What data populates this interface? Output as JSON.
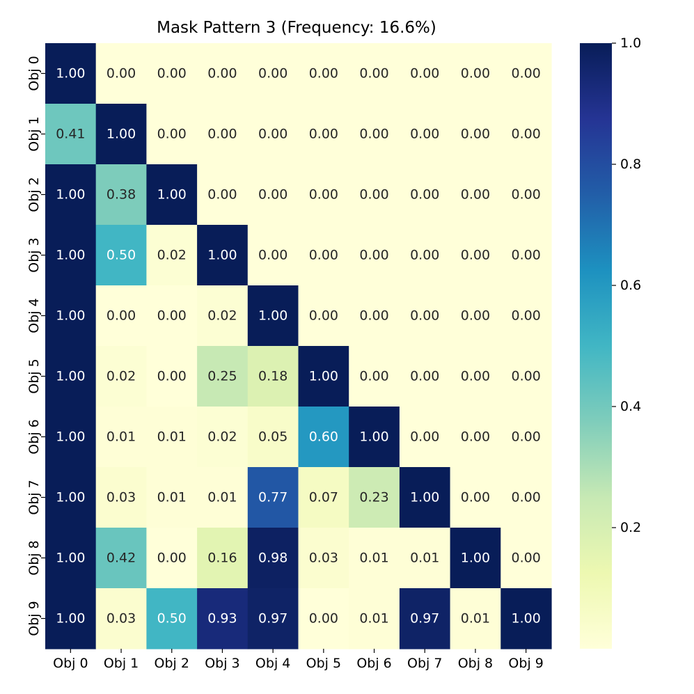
{
  "chart_data": {
    "type": "heatmap",
    "title": "Mask Pattern 3 (Frequency: 16.6%)",
    "x_categories": [
      "Obj 0",
      "Obj 1",
      "Obj 2",
      "Obj 3",
      "Obj 4",
      "Obj 5",
      "Obj 6",
      "Obj 7",
      "Obj 8",
      "Obj 9"
    ],
    "y_categories": [
      "Obj 0",
      "Obj 1",
      "Obj 2",
      "Obj 3",
      "Obj 4",
      "Obj 5",
      "Obj 6",
      "Obj 7",
      "Obj 8",
      "Obj 9"
    ],
    "values": [
      [
        1.0,
        0.0,
        0.0,
        0.0,
        0.0,
        0.0,
        0.0,
        0.0,
        0.0,
        0.0
      ],
      [
        0.41,
        1.0,
        0.0,
        0.0,
        0.0,
        0.0,
        0.0,
        0.0,
        0.0,
        0.0
      ],
      [
        1.0,
        0.38,
        1.0,
        0.0,
        0.0,
        0.0,
        0.0,
        0.0,
        0.0,
        0.0
      ],
      [
        1.0,
        0.5,
        0.02,
        1.0,
        0.0,
        0.0,
        0.0,
        0.0,
        0.0,
        0.0
      ],
      [
        1.0,
        0.0,
        0.0,
        0.02,
        1.0,
        0.0,
        0.0,
        0.0,
        0.0,
        0.0
      ],
      [
        1.0,
        0.02,
        0.0,
        0.25,
        0.18,
        1.0,
        0.0,
        0.0,
        0.0,
        0.0
      ],
      [
        1.0,
        0.01,
        0.01,
        0.02,
        0.05,
        0.6,
        1.0,
        0.0,
        0.0,
        0.0
      ],
      [
        1.0,
        0.03,
        0.01,
        0.01,
        0.77,
        0.07,
        0.23,
        1.0,
        0.0,
        0.0
      ],
      [
        1.0,
        0.42,
        0.0,
        0.16,
        0.98,
        0.03,
        0.01,
        0.01,
        1.0,
        0.0
      ],
      [
        1.0,
        0.03,
        0.5,
        0.93,
        0.97,
        0.0,
        0.01,
        0.97,
        0.01,
        1.0
      ]
    ],
    "value_format": "0.00",
    "colormap": "YlGnBu",
    "colormap_stops": [
      "#ffffd9",
      "#edf8b1",
      "#c7e9b4",
      "#7fcdbb",
      "#41b6c4",
      "#1d91c0",
      "#225ea8",
      "#253494",
      "#081d58"
    ],
    "colorbar": {
      "min": 0.0,
      "max": 1.0,
      "ticks": [
        0.2,
        0.4,
        0.6,
        0.8,
        1.0
      ],
      "tick_labels": [
        "0.2",
        "0.4",
        "0.6",
        "0.8",
        "1.0"
      ],
      "position": "right"
    },
    "grid": false,
    "annotations": true,
    "y_tick_rotation": "vertical"
  }
}
